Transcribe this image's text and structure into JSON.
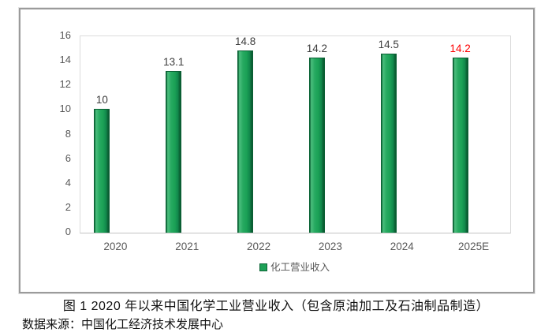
{
  "chart_data": {
    "type": "bar",
    "title": "",
    "categories": [
      "2020",
      "2021",
      "2022",
      "2023",
      "2024",
      "2025E"
    ],
    "values": [
      10,
      13.1,
      14.8,
      14.2,
      14.5,
      14.2
    ],
    "value_labels": [
      "10",
      "13.1",
      "14.8",
      "14.2",
      "14.5",
      "14.2"
    ],
    "value_label_colors": [
      "#3d3d3d",
      "#3d3d3d",
      "#3d3d3d",
      "#3d3d3d",
      "#3d3d3d",
      "#fe0000"
    ],
    "xlabel": "",
    "ylabel": "",
    "ylim": [
      0,
      16
    ],
    "yticks": [
      0,
      2,
      4,
      6,
      8,
      10,
      12,
      14,
      16
    ],
    "grid": "off",
    "legend_position": "bottom",
    "legend_label": "化工营业收入",
    "bar_color": "#1ea157",
    "bar_edge_color": "#0c6436",
    "highlight_color": "#fe0000"
  },
  "caption": "图 1  2020 年以来中国化学工业营业收入（包含原油加工及石油制品制造）",
  "source": "数据来源：中国化工经济技术发展中心"
}
